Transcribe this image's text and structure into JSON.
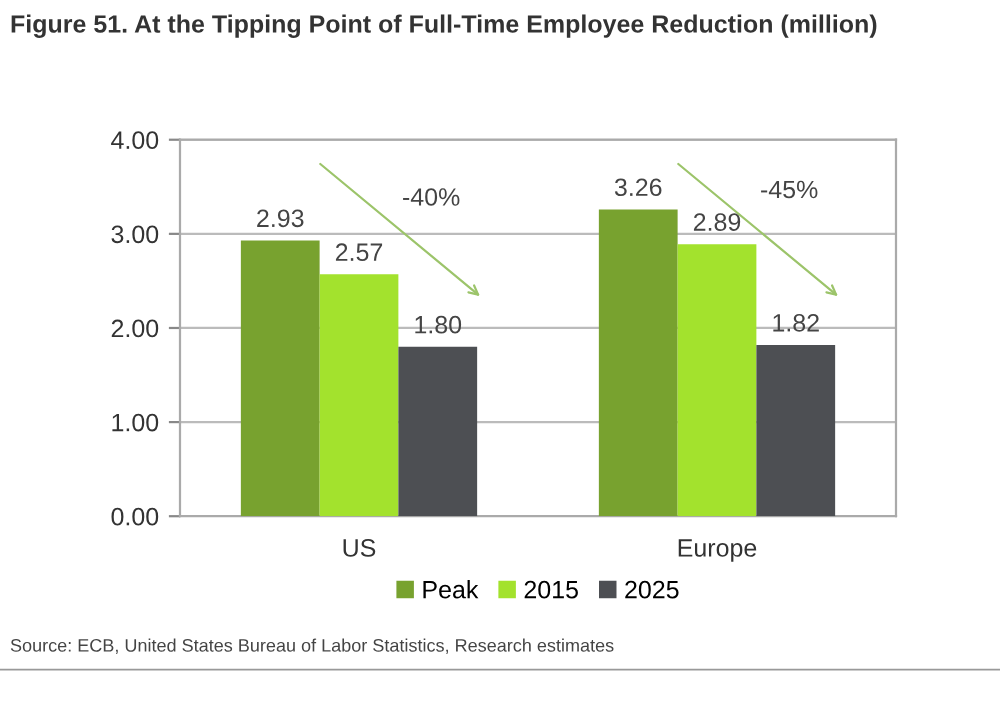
{
  "chart_data": {
    "type": "bar",
    "title": "Figure 51. At the Tipping Point of Full-Time Employee Reduction (million)",
    "categories": [
      "US",
      "Europe"
    ],
    "series": [
      {
        "name": "Peak",
        "color": "#78a22f",
        "values": [
          2.93,
          3.26
        ],
        "value_labels": [
          "2.93",
          "3.26"
        ]
      },
      {
        "name": "2015",
        "color": "#a3e22d",
        "values": [
          2.57,
          2.89
        ],
        "value_labels": [
          "2.57",
          "2.89"
        ]
      },
      {
        "name": "2025",
        "color": "#4d4f53",
        "values": [
          1.8,
          1.82
        ],
        "value_labels": [
          "1.80",
          "1.82"
        ]
      }
    ],
    "ylim": [
      0,
      4
    ],
    "yticks": [
      {
        "value": 0,
        "label": "0.00"
      },
      {
        "value": 1,
        "label": "1.00"
      },
      {
        "value": 2,
        "label": "2.00"
      },
      {
        "value": 3,
        "label": "3.00"
      },
      {
        "value": 4,
        "label": "4.00"
      }
    ],
    "grid": "y",
    "legend": "bottom",
    "annotations": [
      "-40%",
      "-45%",
      "Source: ECB, United States Bureau of Labor Statistics, Research estimates"
    ]
  }
}
